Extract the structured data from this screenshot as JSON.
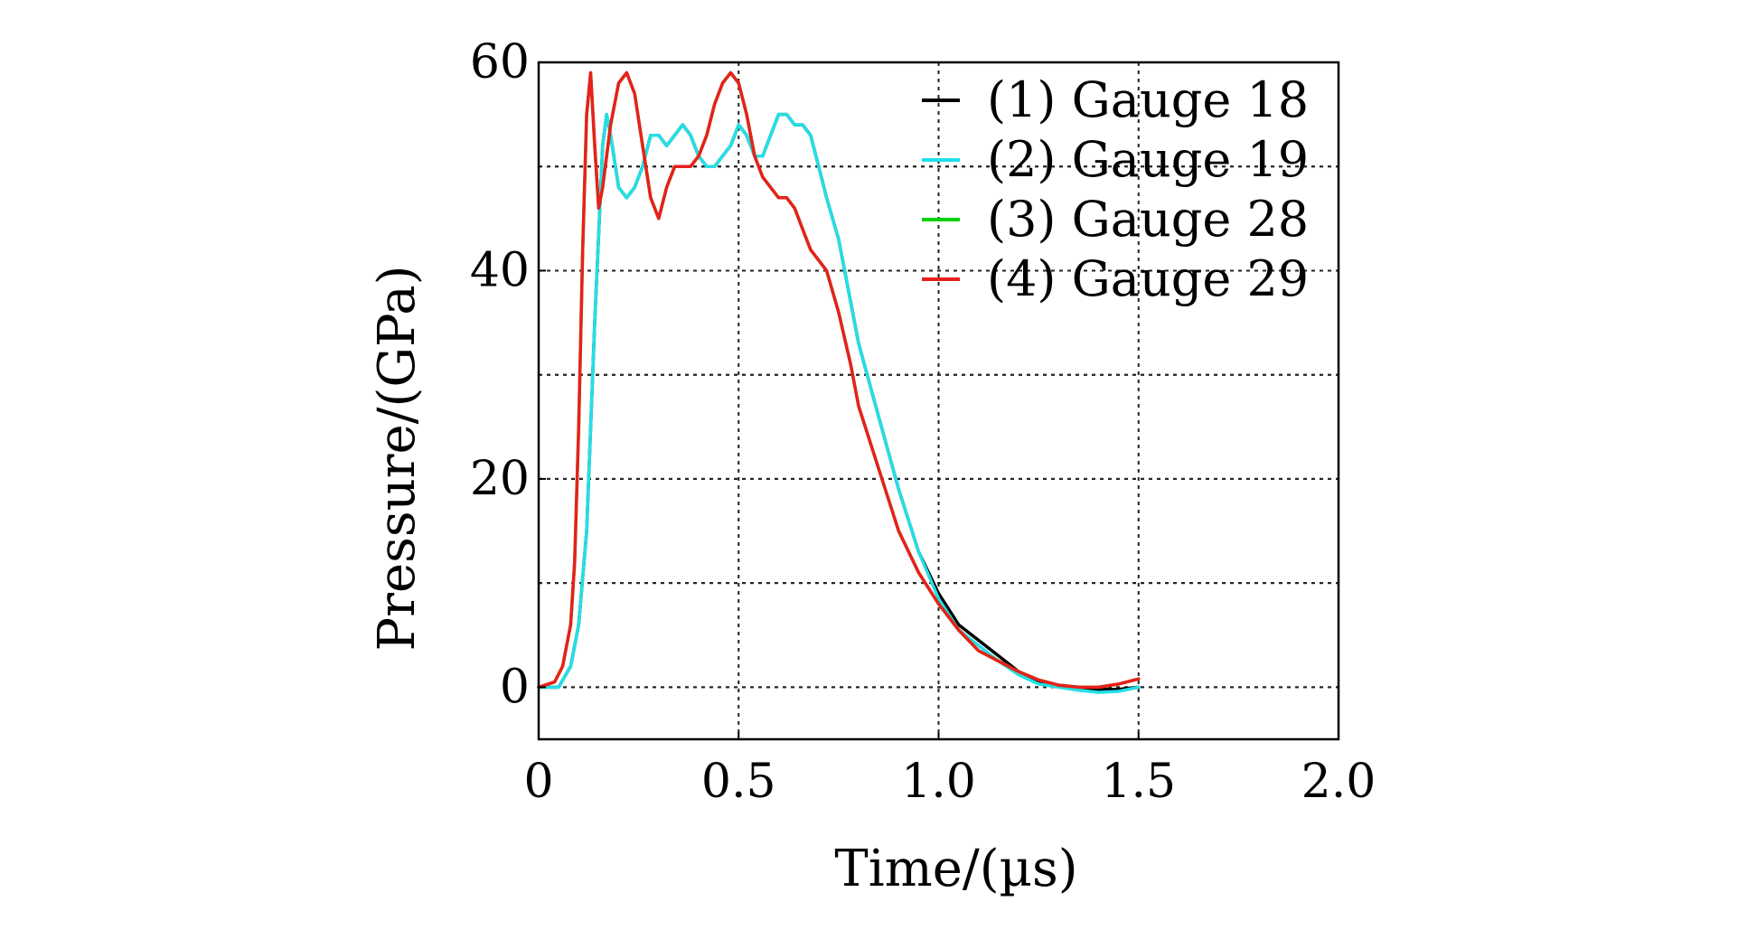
{
  "chart_data": {
    "type": "line",
    "title": "",
    "xlabel": "Time/(µs)",
    "ylabel": "Pressure/(GPa)",
    "xlim": [
      0,
      2.0
    ],
    "ylim": [
      -5,
      60
    ],
    "x_ticks": [
      0,
      0.5,
      1.0,
      1.5,
      2.0
    ],
    "x_tick_labels": [
      "0",
      "0.5",
      "1.0",
      "1.5",
      "2.0"
    ],
    "y_ticks": [
      0,
      20,
      40,
      60
    ],
    "y_tick_labels": [
      "0",
      "20",
      "40",
      "60"
    ],
    "grid": true,
    "legend_position": "top-right",
    "series": [
      {
        "name": "(1) Gauge 18",
        "color": "#000000",
        "x": [
          0,
          0.05,
          0.08,
          0.1,
          0.12,
          0.14,
          0.16,
          0.17,
          0.18,
          0.2,
          0.22,
          0.24,
          0.26,
          0.28,
          0.3,
          0.32,
          0.34,
          0.36,
          0.38,
          0.4,
          0.42,
          0.44,
          0.46,
          0.48,
          0.5,
          0.52,
          0.54,
          0.56,
          0.58,
          0.6,
          0.62,
          0.64,
          0.66,
          0.68,
          0.7,
          0.72,
          0.75,
          0.78,
          0.8,
          0.85,
          0.9,
          0.95,
          1.0,
          1.05,
          1.1,
          1.15,
          1.2,
          1.25,
          1.3,
          1.35,
          1.4,
          1.45,
          1.5
        ],
        "values": [
          0,
          0,
          2,
          6,
          15,
          35,
          52,
          55,
          53,
          48,
          47,
          48,
          50,
          53,
          53,
          52,
          53,
          54,
          53,
          51,
          50,
          50,
          51,
          52,
          54,
          53,
          51,
          51,
          53,
          55,
          55,
          54,
          54,
          53,
          50,
          47,
          43,
          37,
          33,
          26,
          19,
          13,
          9,
          6,
          4.5,
          3,
          1.5,
          0.5,
          0.2,
          0,
          -0.2,
          -0.2,
          0
        ]
      },
      {
        "name": "(2) Gauge 19",
        "color": "#22e0e6",
        "x": [
          0,
          0.05,
          0.08,
          0.1,
          0.12,
          0.14,
          0.16,
          0.17,
          0.18,
          0.2,
          0.22,
          0.24,
          0.26,
          0.28,
          0.3,
          0.32,
          0.34,
          0.36,
          0.38,
          0.4,
          0.42,
          0.44,
          0.46,
          0.48,
          0.5,
          0.52,
          0.54,
          0.56,
          0.58,
          0.6,
          0.62,
          0.64,
          0.66,
          0.68,
          0.7,
          0.72,
          0.75,
          0.78,
          0.8,
          0.85,
          0.9,
          0.95,
          1.0,
          1.05,
          1.1,
          1.15,
          1.2,
          1.25,
          1.3,
          1.35,
          1.4,
          1.45,
          1.5
        ],
        "values": [
          0,
          0,
          2,
          6,
          15,
          35,
          52,
          55,
          53,
          48,
          47,
          48,
          50,
          53,
          53,
          52,
          53,
          54,
          53,
          51,
          50,
          50,
          51,
          52,
          54,
          53,
          51,
          51,
          53,
          55,
          55,
          54,
          54,
          53,
          50,
          47,
          43,
          37,
          33,
          26,
          19,
          13,
          8.5,
          5.5,
          4,
          2.5,
          1.2,
          0.3,
          0,
          -0.3,
          -0.5,
          -0.4,
          0
        ]
      },
      {
        "name": "(3) Gauge 28",
        "color": "#00d000",
        "x": [
          0,
          0.04,
          0.06,
          0.08,
          0.09,
          0.1,
          0.11,
          0.12,
          0.13,
          0.14,
          0.15,
          0.16,
          0.18,
          0.2,
          0.22,
          0.24,
          0.26,
          0.28,
          0.3,
          0.32,
          0.34,
          0.36,
          0.38,
          0.4,
          0.42,
          0.44,
          0.46,
          0.48,
          0.5,
          0.52,
          0.54,
          0.56,
          0.58,
          0.6,
          0.62,
          0.64,
          0.66,
          0.68,
          0.7,
          0.72,
          0.75,
          0.78,
          0.8,
          0.85,
          0.9,
          0.95,
          1.0,
          1.05,
          1.1,
          1.15,
          1.2,
          1.25,
          1.3,
          1.35,
          1.4,
          1.45,
          1.5
        ],
        "values": [
          0,
          0.5,
          2,
          6,
          12,
          25,
          42,
          55,
          59,
          52,
          46,
          48,
          54,
          58,
          59,
          57,
          52,
          47,
          45,
          48,
          50,
          50,
          50,
          51,
          53,
          56,
          58,
          59,
          58,
          55,
          51,
          49,
          48,
          47,
          47,
          46,
          44,
          42,
          41,
          40,
          36,
          31,
          27,
          21,
          15,
          11,
          8,
          5.5,
          3.5,
          2.5,
          1.5,
          0.7,
          0.2,
          0,
          0,
          0.3,
          0.8
        ]
      },
      {
        "name": "(4) Gauge 29",
        "color": "#e8201c",
        "x": [
          0,
          0.04,
          0.06,
          0.08,
          0.09,
          0.1,
          0.11,
          0.12,
          0.13,
          0.14,
          0.15,
          0.16,
          0.18,
          0.2,
          0.22,
          0.24,
          0.26,
          0.28,
          0.3,
          0.32,
          0.34,
          0.36,
          0.38,
          0.4,
          0.42,
          0.44,
          0.46,
          0.48,
          0.5,
          0.52,
          0.54,
          0.56,
          0.58,
          0.6,
          0.62,
          0.64,
          0.66,
          0.68,
          0.7,
          0.72,
          0.75,
          0.78,
          0.8,
          0.85,
          0.9,
          0.95,
          1.0,
          1.05,
          1.1,
          1.15,
          1.2,
          1.25,
          1.3,
          1.35,
          1.4,
          1.45,
          1.5
        ],
        "values": [
          0,
          0.5,
          2,
          6,
          12,
          25,
          42,
          55,
          59,
          52,
          46,
          48,
          54,
          58,
          59,
          57,
          52,
          47,
          45,
          48,
          50,
          50,
          50,
          51,
          53,
          56,
          58,
          59,
          58,
          55,
          51,
          49,
          48,
          47,
          47,
          46,
          44,
          42,
          41,
          40,
          36,
          31,
          27,
          21,
          15,
          11,
          8,
          5.5,
          3.5,
          2.5,
          1.5,
          0.7,
          0.2,
          0,
          0,
          0.3,
          0.8
        ]
      }
    ]
  }
}
